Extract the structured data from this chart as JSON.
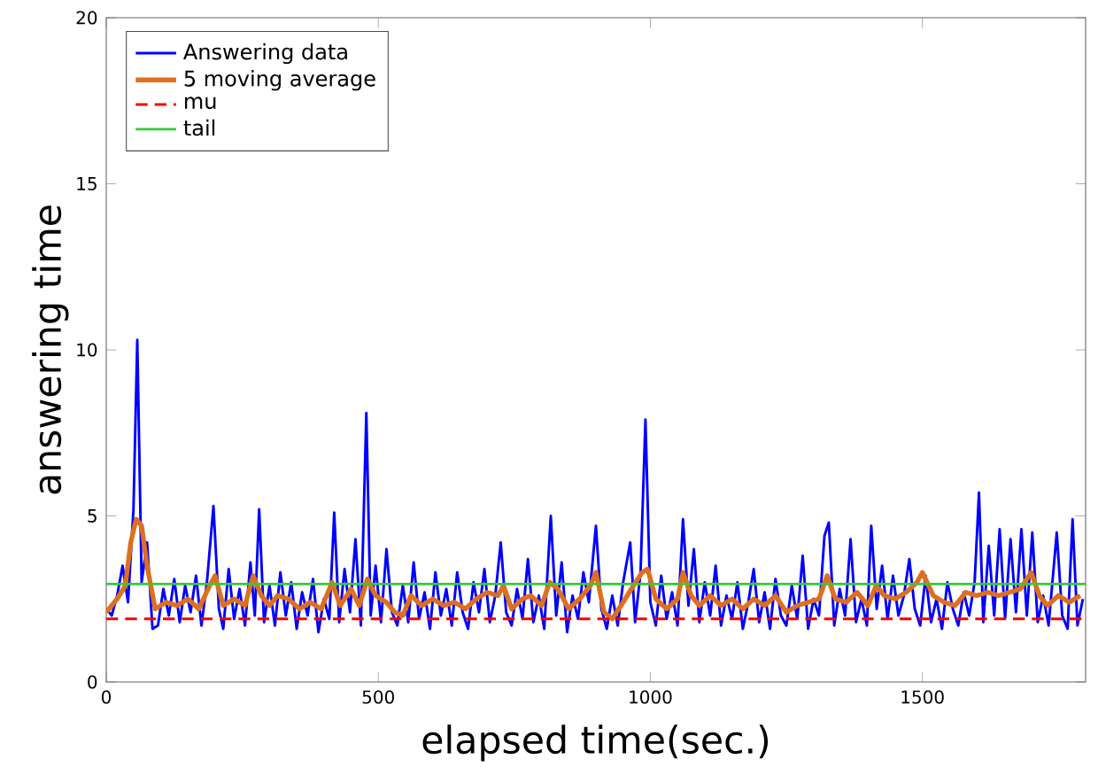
{
  "chart_data": {
    "type": "line",
    "xlabel": "elapsed time(sec.)",
    "ylabel": "answering time",
    "xlim": [
      0,
      1800
    ],
    "ylim": [
      0,
      20
    ],
    "xticks": [
      0,
      500,
      1000,
      1500
    ],
    "yticks": [
      0,
      5,
      10,
      15,
      20
    ],
    "grid": false,
    "legend": "top left",
    "marker": "none",
    "series": [
      {
        "name": "Answering data",
        "color": "#0000ff",
        "line_style": "solid",
        "x": [
          0,
          10,
          20,
          30,
          40,
          50,
          57,
          65,
          75,
          85,
          95,
          105,
          115,
          125,
          135,
          145,
          155,
          165,
          175,
          185,
          197,
          207,
          215,
          225,
          235,
          245,
          255,
          265,
          273,
          281,
          290,
          300,
          310,
          320,
          330,
          340,
          350,
          360,
          370,
          380,
          390,
          400,
          410,
          419,
          428,
          438,
          448,
          458,
          468,
          478,
          486,
          495,
          505,
          515,
          525,
          535,
          545,
          555,
          565,
          575,
          585,
          595,
          605,
          615,
          625,
          635,
          645,
          655,
          665,
          675,
          685,
          695,
          705,
          715,
          725,
          735,
          745,
          755,
          765,
          775,
          785,
          795,
          805,
          817,
          827,
          837,
          847,
          857,
          867,
          877,
          887,
          900,
          910,
          920,
          930,
          940,
          950,
          963,
          972,
          982,
          991,
          1000,
          1010,
          1020,
          1030,
          1040,
          1050,
          1060,
          1070,
          1080,
          1090,
          1100,
          1110,
          1120,
          1130,
          1140,
          1150,
          1160,
          1170,
          1180,
          1190,
          1200,
          1210,
          1220,
          1230,
          1240,
          1250,
          1260,
          1270,
          1280,
          1290,
          1300,
          1310,
          1320,
          1328,
          1338,
          1348,
          1358,
          1368,
          1378,
          1388,
          1398,
          1406,
          1416,
          1426,
          1436,
          1446,
          1456,
          1466,
          1476,
          1486,
          1496,
          1506,
          1516,
          1526,
          1536,
          1546,
          1556,
          1566,
          1576,
          1586,
          1596,
          1604,
          1612,
          1622,
          1632,
          1642,
          1652,
          1662,
          1672,
          1682,
          1692,
          1702,
          1712,
          1722,
          1732,
          1747,
          1757,
          1767,
          1776,
          1785,
          1795
        ],
        "values": [
          2.2,
          2.0,
          2.6,
          3.5,
          2.4,
          5.2,
          10.3,
          3.0,
          4.2,
          1.6,
          1.7,
          2.8,
          2.0,
          3.1,
          1.8,
          2.9,
          2.1,
          3.2,
          1.7,
          3.0,
          5.3,
          2.2,
          1.6,
          3.4,
          1.9,
          2.8,
          1.7,
          3.6,
          2.0,
          5.2,
          1.8,
          2.9,
          1.7,
          3.3,
          2.0,
          3.0,
          1.6,
          2.7,
          2.0,
          3.1,
          1.5,
          2.5,
          1.9,
          5.1,
          1.8,
          3.4,
          2.1,
          4.3,
          1.7,
          8.1,
          2.0,
          3.5,
          1.8,
          4.0,
          2.1,
          1.7,
          2.9,
          1.8,
          3.6,
          1.9,
          2.7,
          1.6,
          3.3,
          2.0,
          2.8,
          1.7,
          3.3,
          2.1,
          1.6,
          3.0,
          2.1,
          3.4,
          1.8,
          2.6,
          4.2,
          2.1,
          1.7,
          2.8,
          1.9,
          3.7,
          1.8,
          2.6,
          1.6,
          5.0,
          2.0,
          3.6,
          1.5,
          2.6,
          1.9,
          3.3,
          2.4,
          4.7,
          2.2,
          1.6,
          2.6,
          1.7,
          3.0,
          4.2,
          1.8,
          3.3,
          7.9,
          2.4,
          1.7,
          3.2,
          1.9,
          2.7,
          1.7,
          4.9,
          2.3,
          4.0,
          1.8,
          3.0,
          2.0,
          3.5,
          1.7,
          2.6,
          1.9,
          3.0,
          1.6,
          2.4,
          3.4,
          1.8,
          2.7,
          1.6,
          3.1,
          2.0,
          1.7,
          2.9,
          1.9,
          3.8,
          1.6,
          2.5,
          2.0,
          4.4,
          4.8,
          1.7,
          2.8,
          2.0,
          4.3,
          1.8,
          2.5,
          1.7,
          4.7,
          2.2,
          3.5,
          1.9,
          3.2,
          2.0,
          2.6,
          3.7,
          2.2,
          1.7,
          3.2,
          1.8,
          2.5,
          1.6,
          3.0,
          2.2,
          1.7,
          2.7,
          2.0,
          3.0,
          5.7,
          1.8,
          4.1,
          2.0,
          4.6,
          1.9,
          4.3,
          2.1,
          4.6,
          2.0,
          4.5,
          1.8,
          2.6,
          1.7,
          4.5,
          2.0,
          1.6,
          4.9,
          1.7,
          2.5
        ]
      },
      {
        "name": "5 moving average",
        "color": "#dd6f1e",
        "line_style": "solid",
        "x": [
          0,
          20,
          35,
          45,
          55,
          65,
          75,
          90,
          110,
          130,
          150,
          170,
          190,
          200,
          215,
          235,
          255,
          270,
          285,
          300,
          315,
          335,
          355,
          375,
          395,
          415,
          430,
          450,
          465,
          480,
          495,
          515,
          530,
          545,
          560,
          580,
          600,
          620,
          640,
          660,
          680,
          700,
          720,
          730,
          745,
          765,
          780,
          800,
          815,
          830,
          850,
          870,
          890,
          900,
          915,
          930,
          950,
          965,
          985,
          995,
          1010,
          1030,
          1050,
          1060,
          1075,
          1090,
          1110,
          1130,
          1150,
          1170,
          1190,
          1210,
          1230,
          1250,
          1270,
          1290,
          1310,
          1325,
          1340,
          1360,
          1380,
          1400,
          1415,
          1430,
          1450,
          1470,
          1490,
          1500,
          1520,
          1540,
          1560,
          1580,
          1600,
          1620,
          1640,
          1660,
          1680,
          1700,
          1715,
          1730,
          1750,
          1770,
          1790
        ],
        "values": [
          2.1,
          2.5,
          2.9,
          4.2,
          4.9,
          4.7,
          3.5,
          2.2,
          2.4,
          2.3,
          2.5,
          2.2,
          2.9,
          3.2,
          2.3,
          2.5,
          2.3,
          3.2,
          2.6,
          2.3,
          2.6,
          2.5,
          2.2,
          2.4,
          2.2,
          3.0,
          2.3,
          2.8,
          2.3,
          3.1,
          2.6,
          2.4,
          2.1,
          2.0,
          2.6,
          2.3,
          2.5,
          2.3,
          2.4,
          2.2,
          2.5,
          2.7,
          2.6,
          2.9,
          2.2,
          2.5,
          2.6,
          2.3,
          3.0,
          2.8,
          2.2,
          2.5,
          2.9,
          3.3,
          2.1,
          1.9,
          2.4,
          2.8,
          3.3,
          3.4,
          2.5,
          2.2,
          2.5,
          3.3,
          2.6,
          2.3,
          2.6,
          2.3,
          2.5,
          2.2,
          2.5,
          2.3,
          2.6,
          2.1,
          2.3,
          2.4,
          2.5,
          3.2,
          2.5,
          2.4,
          2.7,
          2.3,
          2.9,
          2.6,
          2.5,
          2.7,
          3.0,
          3.3,
          2.6,
          2.4,
          2.3,
          2.7,
          2.6,
          2.7,
          2.6,
          2.7,
          2.8,
          3.3,
          2.6,
          2.3,
          2.6,
          2.4,
          2.6
        ]
      },
      {
        "name": "mu",
        "color": "#ff0000",
        "line_style": "dashed",
        "x": [
          0,
          1800
        ],
        "values": [
          1.9,
          1.9
        ]
      },
      {
        "name": "tail",
        "color": "#33cc33",
        "line_style": "solid",
        "x": [
          0,
          1800
        ],
        "values": [
          2.95,
          2.95
        ]
      }
    ]
  }
}
